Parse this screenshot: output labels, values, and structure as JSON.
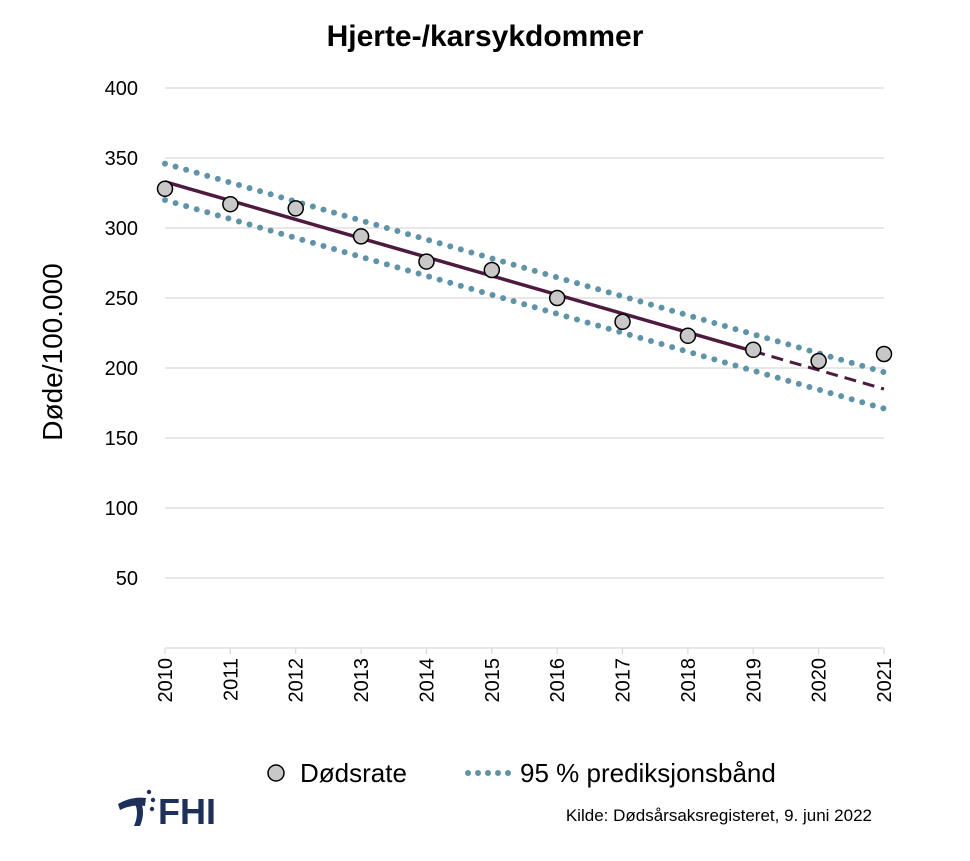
{
  "chart_data": {
    "type": "scatter",
    "title": "Hjerte-/karsykdommer",
    "ylabel": "Døde/100.000",
    "xlabel": "",
    "x": [
      2010,
      2011,
      2012,
      2013,
      2014,
      2015,
      2016,
      2017,
      2018,
      2019,
      2020,
      2021
    ],
    "x_tick_labels": [
      "2010",
      "2011",
      "2012",
      "2013",
      "2014",
      "2015",
      "2016",
      "2017",
      "2018",
      "2019",
      "2020",
      "2021"
    ],
    "ylim": [
      0,
      400
    ],
    "y_ticks": [
      50,
      100,
      150,
      200,
      250,
      300,
      350,
      400
    ],
    "y_tick_labels": [
      "50",
      "100",
      "150",
      "200",
      "250",
      "300",
      "350",
      "400"
    ],
    "grid": true,
    "series": [
      {
        "name": "Dødsrate",
        "kind": "points",
        "color": "#c8c8c8",
        "values": [
          328,
          317,
          314,
          294,
          276,
          270,
          250,
          233,
          223,
          213,
          205,
          210
        ]
      },
      {
        "kind": "trend",
        "color": "#4e1a3f",
        "solid_x": [
          2010,
          2019
        ],
        "solid_y": [
          333,
          212
        ],
        "dashed_x": [
          2019,
          2021
        ],
        "dashed_y": [
          212,
          185
        ]
      },
      {
        "name": "95 % prediksjonsbånd",
        "kind": "band",
        "color": "#5f93a8",
        "upper_x": [
          2010,
          2021
        ],
        "upper_y": [
          346,
          197
        ],
        "lower_x": [
          2010,
          2021
        ],
        "lower_y": [
          320,
          171
        ]
      }
    ],
    "legend": {
      "placement": "bottom-center",
      "entries": [
        "Dødsrate",
        "95 % prediksjonsbånd"
      ]
    }
  },
  "logo": {
    "text": "FHI",
    "color": "#1f2f5c"
  },
  "source": "Kilde: Dødsårsaksregisteret, 9. juni 2022"
}
